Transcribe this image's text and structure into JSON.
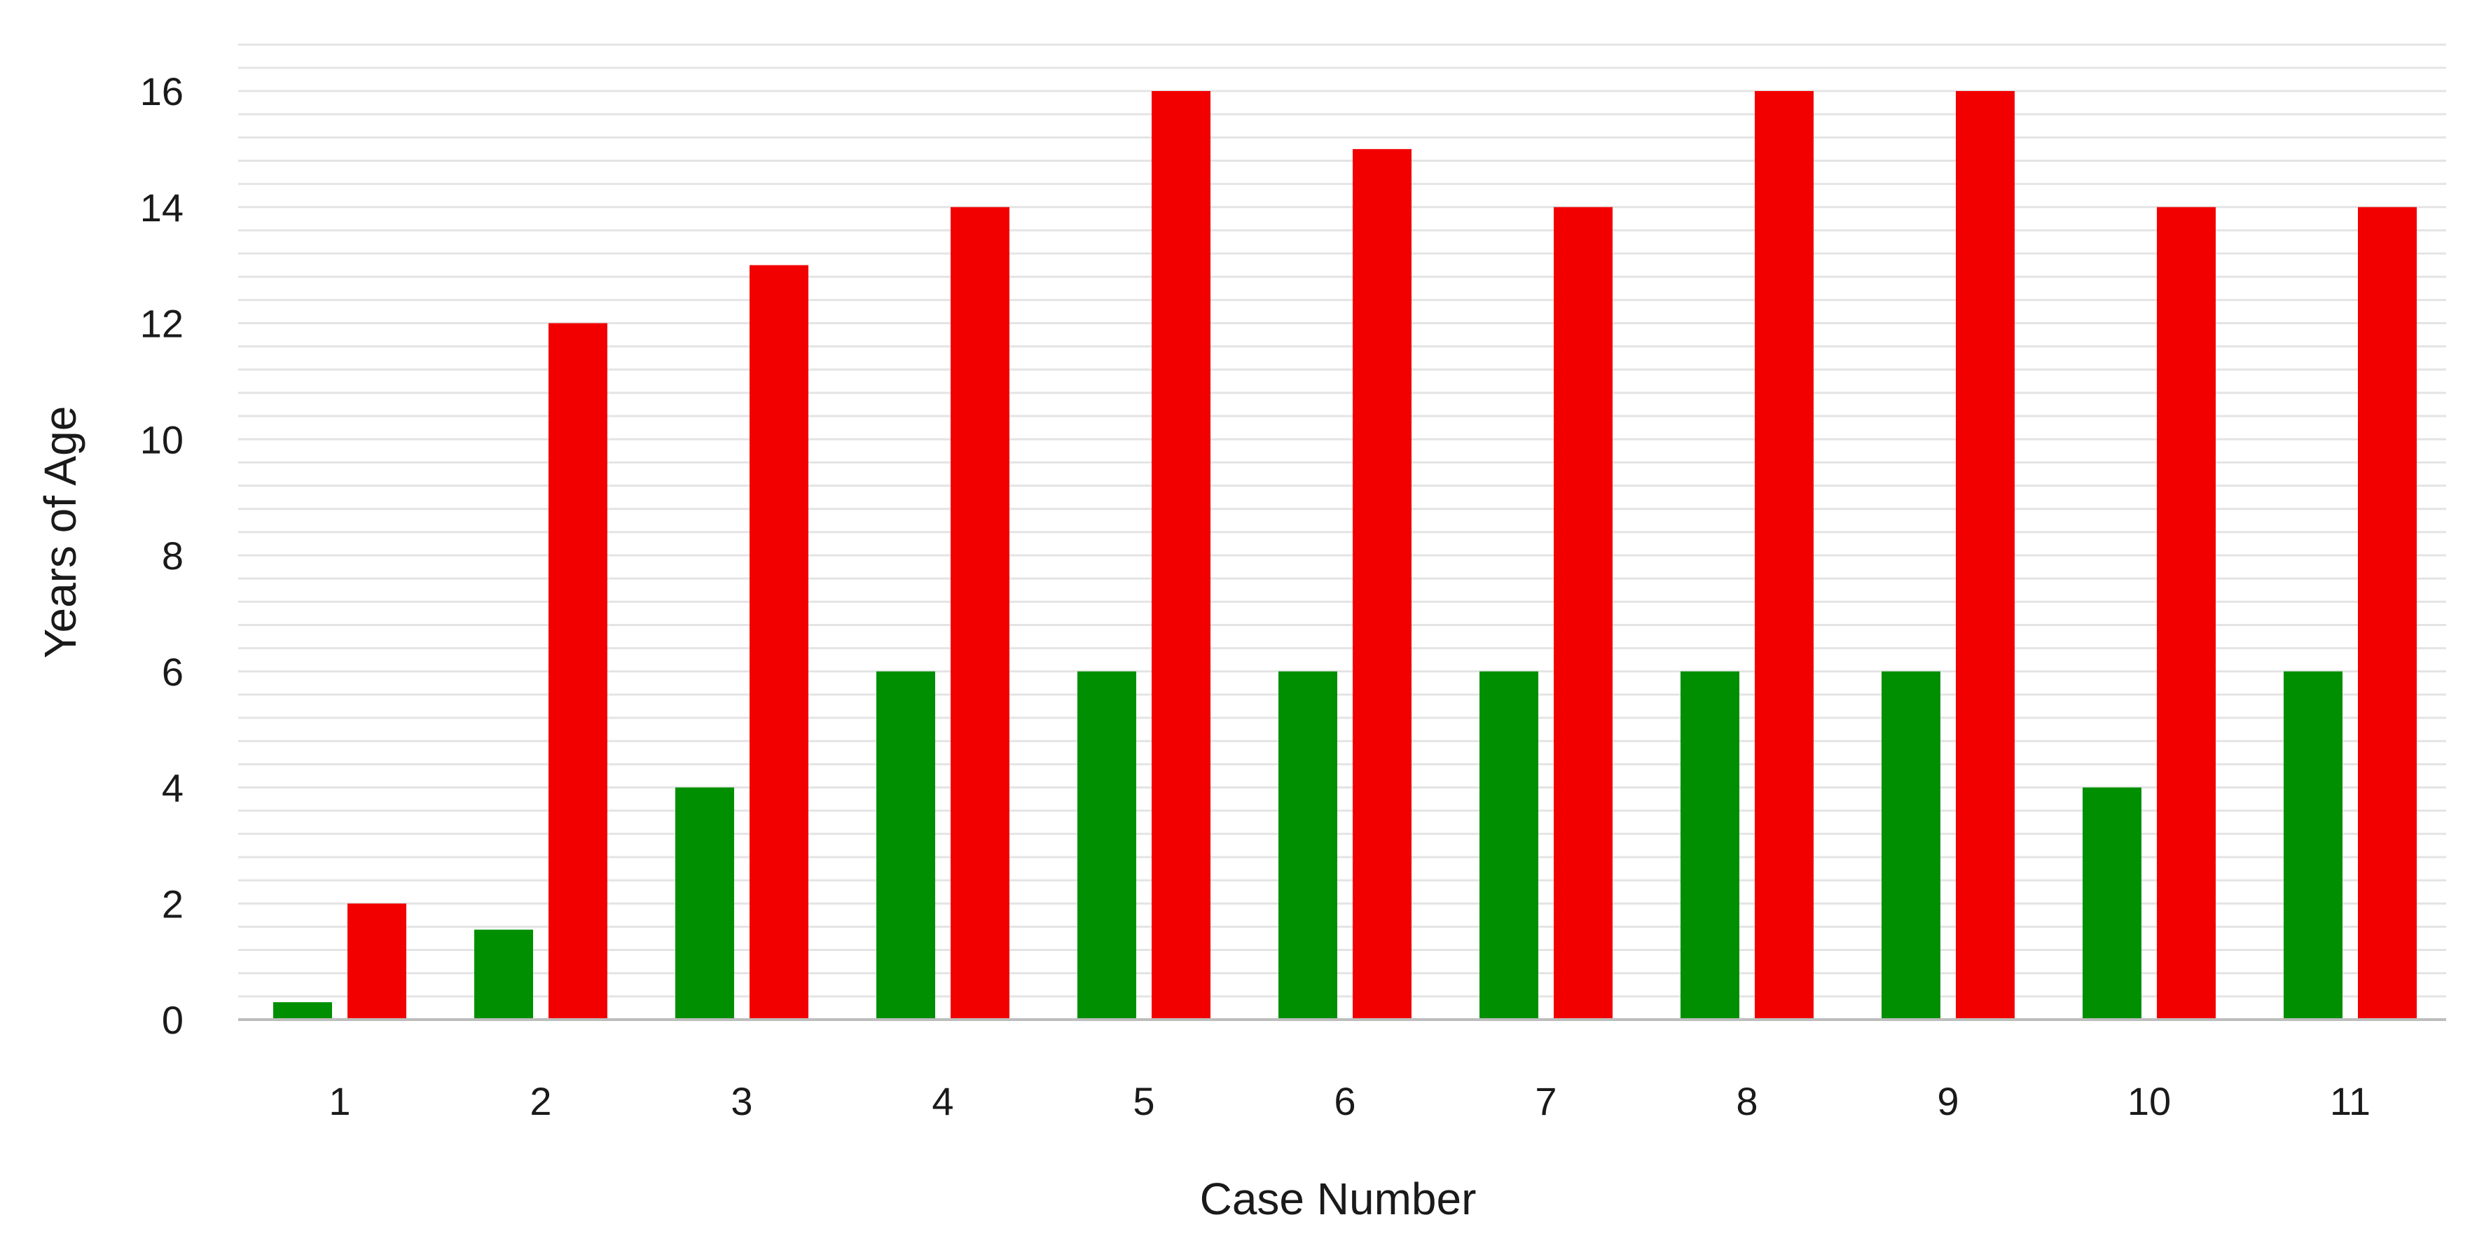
{
  "chart_data": {
    "type": "bar",
    "title": "",
    "xlabel": "Case Number",
    "ylabel": "Years of Age",
    "categories": [
      "1",
      "2",
      "3",
      "4",
      "5",
      "6",
      "7",
      "8",
      "9",
      "10",
      "11"
    ],
    "series": [
      {
        "color": "#008f00",
        "values": [
          0.3,
          1.55,
          4,
          6,
          6,
          6,
          6,
          6,
          6,
          4,
          6
        ]
      },
      {
        "color": "#f20000",
        "values": [
          2,
          12,
          13,
          14,
          16,
          15,
          14,
          16,
          16,
          14,
          14
        ]
      }
    ],
    "ylim": [
      0,
      16
    ],
    "yticks": [
      "0",
      "2",
      "4",
      "6",
      "8",
      "10",
      "12",
      "14",
      "16"
    ],
    "grid": true,
    "legend": "none"
  }
}
